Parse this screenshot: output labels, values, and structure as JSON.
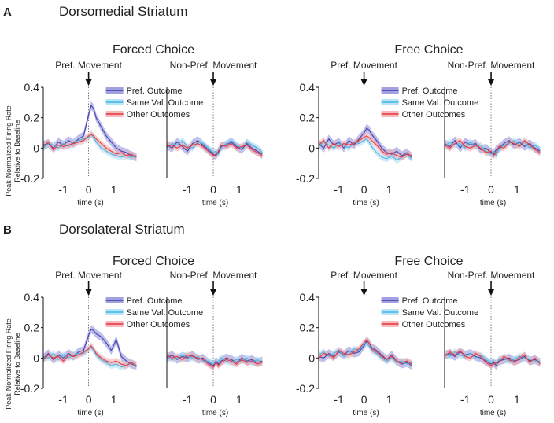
{
  "sections": [
    {
      "letter": "A",
      "title": "Dorsomedial Striatum"
    },
    {
      "letter": "B",
      "title": "Dorsolateral Striatum"
    }
  ],
  "group_titles": [
    "Forced Choice",
    "Free Choice",
    "Forced Choice",
    "Free Choice"
  ],
  "movement_labels": {
    "pref": "Pref. Movement",
    "nonpref": "Non-Pref. Movement"
  },
  "ylabel_lines": [
    "Peak-Normalized Firing Rate",
    "Relative to Baseline"
  ],
  "xlabel": "time (s)",
  "legend": [
    "Pref. Outcome",
    "Same Val. Outcome",
    "Other Outcomes"
  ],
  "colors": {
    "pref": "#3d3daa",
    "pref_band": "#8c88d8",
    "same": "#3fb6e8",
    "same_band": "#a9dcf3",
    "other": "#e8333b",
    "other_band": "#f3a9ae",
    "text": "#222222",
    "axis": "#111111"
  },
  "chart_data": {
    "type": "line",
    "x_range": [
      -1.8,
      1.95
    ],
    "ylim": [
      -0.2,
      0.4
    ],
    "yticks": [
      "0.4",
      "0.2",
      "0",
      "-0.2"
    ],
    "xticks": [
      "-1",
      "0",
      "1"
    ],
    "x": [
      -1.8,
      -1.6,
      -1.4,
      -1.2,
      -1.0,
      -0.8,
      -0.6,
      -0.4,
      -0.2,
      0.0,
      0.1,
      0.2,
      0.3,
      0.5,
      0.7,
      0.9,
      1.1,
      1.3,
      1.5,
      1.7,
      1.9
    ],
    "panels": [
      {
        "name": "A Forced Choice Pref. Movement",
        "series": [
          {
            "name": "Pref. Outcome",
            "values": [
              0.02,
              0.03,
              0.0,
              0.04,
              0.02,
              0.05,
              0.03,
              0.06,
              0.08,
              0.22,
              0.28,
              0.26,
              0.2,
              0.14,
              0.08,
              0.04,
              0.0,
              -0.02,
              -0.03,
              -0.05,
              -0.06
            ]
          },
          {
            "name": "Same Val. Outcome",
            "values": [
              0.0,
              0.03,
              0.02,
              0.0,
              0.03,
              0.01,
              0.04,
              0.05,
              0.06,
              0.07,
              0.09,
              0.07,
              0.04,
              0.0,
              -0.02,
              -0.04,
              -0.05,
              -0.06,
              -0.05,
              -0.06,
              -0.05
            ]
          },
          {
            "name": "Other Outcomes",
            "values": [
              0.01,
              0.04,
              -0.01,
              0.02,
              0.01,
              0.02,
              0.03,
              0.04,
              0.05,
              0.08,
              0.09,
              0.08,
              0.06,
              0.03,
              0.0,
              -0.02,
              -0.04,
              -0.03,
              -0.05,
              -0.04,
              -0.06
            ]
          }
        ]
      },
      {
        "name": "A Forced Choice Non-Pref. Movement",
        "series": [
          {
            "name": "Pref. Outcome",
            "values": [
              0.02,
              0.0,
              0.04,
              0.01,
              -0.02,
              0.03,
              0.05,
              0.02,
              -0.01,
              -0.04,
              -0.05,
              -0.02,
              0.01,
              0.02,
              0.04,
              0.01,
              -0.01,
              0.03,
              0.0,
              -0.02,
              -0.04
            ]
          },
          {
            "name": "Same Val. Outcome",
            "values": [
              0.0,
              0.03,
              0.02,
              0.05,
              0.01,
              0.0,
              0.04,
              0.03,
              0.0,
              -0.03,
              -0.02,
              -0.04,
              0.0,
              0.03,
              0.05,
              0.02,
              0.0,
              0.04,
              0.02,
              0.0,
              -0.03
            ]
          },
          {
            "name": "Other Outcomes",
            "values": [
              0.01,
              0.02,
              0.0,
              0.02,
              0.0,
              0.02,
              0.03,
              0.01,
              -0.02,
              -0.05,
              -0.04,
              -0.03,
              0.02,
              0.01,
              0.03,
              0.0,
              0.01,
              0.02,
              -0.01,
              -0.03,
              -0.05
            ]
          }
        ]
      },
      {
        "name": "A Free Choice Pref. Movement",
        "series": [
          {
            "name": "Pref. Outcome",
            "values": [
              0.03,
              0.0,
              0.06,
              0.02,
              0.04,
              0.0,
              0.05,
              0.02,
              0.06,
              0.1,
              0.13,
              0.12,
              0.09,
              0.05,
              0.0,
              -0.03,
              -0.04,
              -0.02,
              -0.05,
              -0.03,
              -0.06
            ]
          },
          {
            "name": "Same Val. Outcome",
            "values": [
              0.01,
              0.04,
              0.02,
              0.0,
              0.03,
              0.02,
              0.0,
              0.04,
              0.03,
              0.05,
              0.06,
              0.04,
              0.01,
              -0.03,
              -0.06,
              -0.07,
              -0.05,
              -0.08,
              -0.06,
              -0.04,
              -0.07
            ]
          },
          {
            "name": "Other Outcomes",
            "values": [
              0.02,
              0.05,
              0.0,
              0.03,
              0.01,
              0.03,
              0.02,
              0.03,
              0.05,
              0.07,
              0.08,
              0.07,
              0.05,
              0.02,
              -0.02,
              -0.04,
              -0.03,
              -0.05,
              -0.06,
              -0.04,
              -0.05
            ]
          }
        ]
      },
      {
        "name": "A Free Choice Non-Pref. Movement",
        "series": [
          {
            "name": "Pref. Outcome",
            "values": [
              0.03,
              0.01,
              0.05,
              0.0,
              0.04,
              0.02,
              0.03,
              -0.01,
              0.0,
              -0.03,
              -0.04,
              -0.01,
              0.0,
              0.03,
              0.05,
              0.02,
              0.04,
              0.01,
              0.03,
              0.0,
              -0.02
            ]
          },
          {
            "name": "Same Val. Outcome",
            "values": [
              0.01,
              0.04,
              0.02,
              0.03,
              0.0,
              0.04,
              0.01,
              0.02,
              -0.02,
              -0.04,
              -0.02,
              -0.05,
              -0.01,
              0.02,
              0.03,
              0.05,
              0.02,
              0.04,
              0.0,
              0.02,
              -0.01
            ]
          },
          {
            "name": "Other Outcomes",
            "values": [
              0.02,
              0.0,
              0.03,
              0.05,
              0.01,
              0.0,
              0.02,
              0.0,
              -0.03,
              -0.02,
              -0.05,
              -0.03,
              0.01,
              0.0,
              0.04,
              0.03,
              0.01,
              0.05,
              0.02,
              -0.01,
              -0.03
            ]
          }
        ]
      },
      {
        "name": "B Forced Choice Pref. Movement",
        "series": [
          {
            "name": "Pref. Outcome",
            "values": [
              0.0,
              0.03,
              -0.01,
              0.02,
              0.0,
              0.03,
              0.01,
              0.04,
              0.05,
              0.15,
              0.19,
              0.18,
              0.16,
              0.14,
              0.1,
              0.05,
              0.12,
              0.01,
              -0.02,
              -0.04,
              -0.05
            ]
          },
          {
            "name": "Same Val. Outcome",
            "values": [
              0.01,
              0.0,
              0.03,
              -0.01,
              0.02,
              0.0,
              0.02,
              0.03,
              0.03,
              0.06,
              0.07,
              0.05,
              0.02,
              -0.01,
              -0.03,
              -0.05,
              -0.04,
              -0.06,
              -0.05,
              -0.03,
              -0.06
            ]
          },
          {
            "name": "Other Outcomes",
            "values": [
              -0.01,
              0.02,
              0.0,
              0.01,
              -0.02,
              0.02,
              0.01,
              0.02,
              0.04,
              0.06,
              0.08,
              0.06,
              0.03,
              0.0,
              -0.02,
              -0.03,
              -0.02,
              -0.04,
              -0.05,
              -0.03,
              -0.05
            ]
          }
        ]
      },
      {
        "name": "B Forced Choice Non-Pref. Movement",
        "series": [
          {
            "name": "Pref. Outcome",
            "values": [
              0.0,
              0.02,
              -0.01,
              0.01,
              0.0,
              0.02,
              -0.01,
              0.0,
              -0.03,
              -0.05,
              -0.02,
              -0.04,
              -0.02,
              0.0,
              -0.01,
              -0.03,
              0.0,
              -0.02,
              -0.01,
              -0.03,
              -0.02
            ]
          },
          {
            "name": "Same Val. Outcome",
            "values": [
              0.01,
              -0.01,
              0.0,
              0.02,
              0.01,
              0.0,
              0.01,
              -0.02,
              -0.02,
              -0.04,
              -0.03,
              -0.02,
              0.0,
              -0.02,
              -0.03,
              -0.01,
              -0.02,
              0.0,
              -0.03,
              -0.01,
              -0.03
            ]
          },
          {
            "name": "Other Outcomes",
            "values": [
              0.02,
              0.0,
              0.01,
              -0.01,
              0.02,
              0.01,
              0.0,
              -0.01,
              -0.04,
              -0.06,
              -0.03,
              -0.05,
              -0.03,
              -0.01,
              -0.02,
              -0.04,
              -0.01,
              -0.03,
              -0.02,
              -0.04,
              -0.03
            ]
          }
        ]
      },
      {
        "name": "B Free Choice Pref. Movement",
        "series": [
          {
            "name": "Pref. Outcome",
            "values": [
              0.01,
              0.0,
              0.03,
              0.01,
              0.04,
              0.02,
              0.05,
              0.03,
              0.04,
              0.08,
              0.11,
              0.1,
              0.07,
              0.05,
              0.02,
              -0.01,
              0.02,
              -0.02,
              -0.04,
              -0.03,
              -0.05
            ]
          },
          {
            "name": "Same Val. Outcome",
            "values": [
              0.02,
              0.04,
              0.01,
              0.03,
              0.05,
              0.01,
              0.03,
              0.06,
              0.05,
              0.09,
              0.1,
              0.08,
              0.05,
              0.03,
              0.0,
              -0.02,
              0.0,
              -0.03,
              -0.02,
              -0.04,
              -0.03
            ]
          },
          {
            "name": "Other Outcomes",
            "values": [
              0.0,
              0.03,
              0.02,
              0.0,
              0.05,
              0.03,
              0.02,
              0.04,
              0.06,
              0.1,
              0.12,
              0.1,
              0.06,
              0.04,
              0.01,
              -0.01,
              0.01,
              -0.02,
              -0.03,
              -0.02,
              -0.04
            ]
          }
        ]
      },
      {
        "name": "B Free Choice Non-Pref. Movement",
        "series": [
          {
            "name": "Pref. Outcome",
            "values": [
              0.02,
              0.03,
              0.01,
              0.04,
              0.02,
              0.03,
              0.01,
              0.0,
              -0.02,
              -0.04,
              -0.03,
              -0.05,
              -0.02,
              -0.01,
              0.0,
              -0.02,
              -0.01,
              0.01,
              -0.02,
              -0.01,
              -0.03
            ]
          },
          {
            "name": "Same Val. Outcome",
            "values": [
              0.03,
              0.01,
              0.04,
              0.02,
              0.01,
              0.03,
              0.0,
              0.02,
              -0.01,
              -0.03,
              -0.02,
              -0.04,
              -0.01,
              0.0,
              -0.02,
              -0.01,
              0.01,
              0.0,
              -0.01,
              -0.02,
              -0.02
            ]
          },
          {
            "name": "Other Outcomes",
            "values": [
              0.01,
              0.04,
              0.02,
              0.05,
              0.01,
              0.0,
              0.03,
              0.01,
              -0.03,
              -0.05,
              -0.04,
              -0.03,
              -0.03,
              0.01,
              -0.01,
              -0.03,
              0.0,
              0.02,
              -0.03,
              0.0,
              -0.04
            ]
          }
        ]
      }
    ]
  }
}
